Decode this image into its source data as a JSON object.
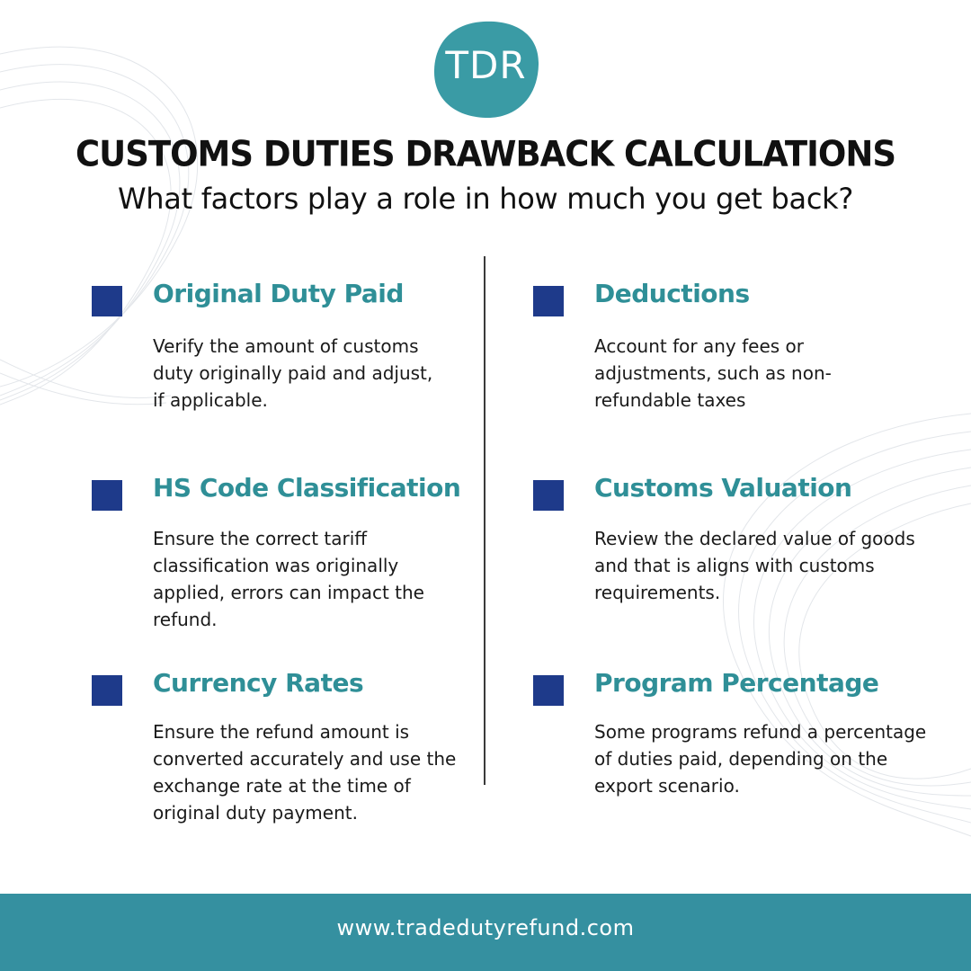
{
  "brand": {
    "logo_text": "TDR",
    "logo_color": "#3a9ba5"
  },
  "header": {
    "title": "CUSTOMS DUTIES DRAWBACK CALCULATIONS",
    "subtitle": "What factors play a role in how much you get back?"
  },
  "colors": {
    "accent_teal": "#2f8f97",
    "square_navy": "#1e3a8a",
    "footer_bg": "#3590a0"
  },
  "factors": [
    {
      "heading": "Original Duty Paid",
      "description": "Verify the amount of customs duty originally paid and adjust, if applicable."
    },
    {
      "heading": "Deductions",
      "description": "Account for any fees or adjustments, such as non-refundable taxes"
    },
    {
      "heading": "HS Code Classification",
      "description": "Ensure the correct tariff classification was originally applied, errors can impact the refund."
    },
    {
      "heading": "Customs Valuation",
      "description": "Review the declared value of goods and that is aligns with customs requirements."
    },
    {
      "heading": "Currency Rates",
      "description": "Ensure the refund amount is converted accurately and use the exchange rate at the time of original duty payment."
    },
    {
      "heading": "Program Percentage",
      "description": "Some programs refund a percentage of duties paid, depending on the export scenario."
    }
  ],
  "footer": {
    "url": "www.tradedutyrefund.com"
  }
}
